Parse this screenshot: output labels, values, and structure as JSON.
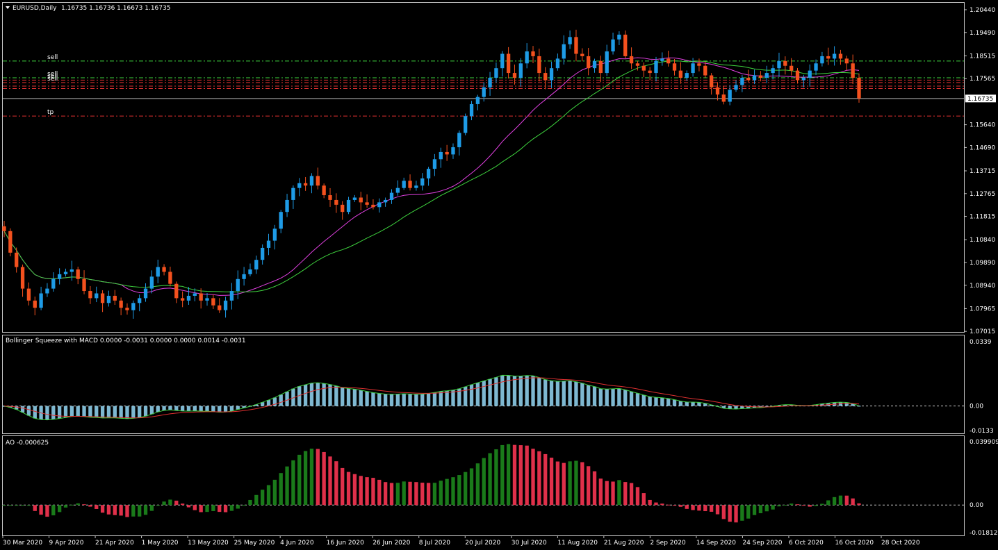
{
  "header": {
    "symbol": "EURUSD,Daily",
    "ohlc": "1.16735 1.16736 1.16673 1.16735"
  },
  "colors": {
    "background": "#000000",
    "bull": "#1e9be6",
    "bear": "#f4511e",
    "ma_fast": "#e040e0",
    "ma_slow": "#3ed23e",
    "level_sell": "#3ed23e",
    "level_red": "#e03030",
    "ao_up": "#1a7a1a",
    "ao_down": "#e0304a",
    "macd_bar": "#8ccce8",
    "macd_line_white": "#ffffff",
    "macd_signal": "#e03030",
    "macd_line_green": "#3ed23e"
  },
  "main_panel": {
    "price_axis": [
      "1.20440",
      "1.19490",
      "1.18515",
      "1.17565",
      "1.16735",
      "1.15640",
      "1.14690",
      "1.13715",
      "1.12765",
      "1.11815",
      "1.10840",
      "1.09890",
      "1.08940",
      "1.07965",
      "1.07015"
    ],
    "current_price": "1.16735",
    "levels": [
      {
        "label": "sell",
        "price": 1.183,
        "color": "#3ed23e"
      },
      {
        "label": "sell",
        "price": 1.176,
        "color": "#3ed23e"
      },
      {
        "label": "sell",
        "price": 1.175,
        "color": "#e03030"
      },
      {
        "label": "sell",
        "price": 1.174,
        "color": "#e03030"
      },
      {
        "label": "",
        "price": 1.1725,
        "color": "#e03030"
      },
      {
        "label": "",
        "price": 1.1715,
        "color": "#e03030"
      },
      {
        "label": "tp",
        "price": 1.16,
        "color": "#e03030"
      }
    ]
  },
  "macd_panel": {
    "title": "Bollinger Squeeze with MACD 0.0000 -0.0031 0.0000 0.0000 0.0014 -0.0031",
    "axis": [
      "0.0339",
      "0.00",
      "-0.0133"
    ]
  },
  "ao_panel": {
    "title": "AO -0.000625",
    "axis": [
      "0.039909",
      "0.00",
      "-0.018121"
    ]
  },
  "time_axis": [
    "30 Mar 2020",
    "9 Apr 2020",
    "21 Apr 2020",
    "1 May 2020",
    "13 May 2020",
    "25 May 2020",
    "4 Jun 2020",
    "16 Jun 2020",
    "26 Jun 2020",
    "8 Jul 2020",
    "20 Jul 2020",
    "30 Jul 2020",
    "11 Aug 2020",
    "21 Aug 2020",
    "2 Sep 2020",
    "14 Sep 2020",
    "24 Sep 2020",
    "6 Oct 2020",
    "16 Oct 2020",
    "28 Oct 2020"
  ],
  "chart_data": {
    "type": "candlestick",
    "symbol": "EURUSD",
    "timeframe": "Daily",
    "x_start": "30 Mar 2020",
    "x_end": "30 Oct 2020",
    "ylim": [
      1.0702,
      1.2044
    ],
    "close": [
      1.112,
      1.103,
      1.097,
      1.088,
      1.083,
      1.08,
      1.086,
      1.088,
      1.092,
      1.094,
      1.095,
      1.096,
      1.092,
      1.087,
      1.084,
      1.086,
      1.082,
      1.085,
      1.083,
      1.08,
      1.079,
      1.082,
      1.084,
      1.088,
      1.093,
      1.097,
      1.095,
      1.09,
      1.084,
      1.083,
      1.085,
      1.086,
      1.083,
      1.084,
      1.081,
      1.079,
      1.083,
      1.087,
      1.092,
      1.094,
      1.096,
      1.1,
      1.105,
      1.108,
      1.113,
      1.12,
      1.125,
      1.13,
      1.132,
      1.131,
      1.135,
      1.131,
      1.127,
      1.125,
      1.123,
      1.12,
      1.125,
      1.126,
      1.124,
      1.123,
      1.122,
      1.124,
      1.125,
      1.128,
      1.13,
      1.133,
      1.13,
      1.131,
      1.134,
      1.138,
      1.142,
      1.145,
      1.144,
      1.147,
      1.153,
      1.16,
      1.165,
      1.168,
      1.172,
      1.176,
      1.18,
      1.186,
      1.178,
      1.176,
      1.182,
      1.187,
      1.185,
      1.178,
      1.175,
      1.18,
      1.184,
      1.19,
      1.193,
      1.186,
      1.185,
      1.18,
      1.183,
      1.178,
      1.187,
      1.192,
      1.194,
      1.185,
      1.182,
      1.181,
      1.179,
      1.178,
      1.183,
      1.184,
      1.182,
      1.179,
      1.176,
      1.178,
      1.182,
      1.181,
      1.177,
      1.172,
      1.169,
      1.166,
      1.171,
      1.173,
      1.176,
      1.175,
      1.177,
      1.176,
      1.178,
      1.18,
      1.183,
      1.181,
      1.179,
      1.175,
      1.176,
      1.179,
      1.182,
      1.185,
      1.184,
      1.186,
      1.184,
      1.182,
      1.176,
      1.1674
    ]
  }
}
